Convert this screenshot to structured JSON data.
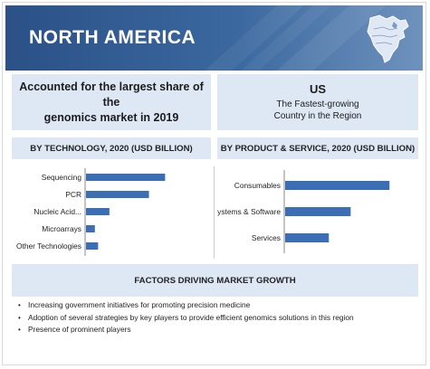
{
  "header": {
    "title": "NORTH AMERICA",
    "map_icon": "north-america-map-icon"
  },
  "callouts": {
    "left": {
      "line1": "Accounted for the largest share of the",
      "line2": "genomics market in 2019"
    },
    "right": {
      "region": "US",
      "line1": "The Fastest-growing",
      "line2": "Country in the Region"
    }
  },
  "colors": {
    "banner": "#2b5187",
    "bar": "#3b6eb4",
    "panel": "#dde8f4"
  },
  "chart_data": [
    {
      "type": "bar",
      "orientation": "horizontal",
      "title": "BY TECHNOLOGY, 2020 (USD BILLION)",
      "categories": [
        "Sequencing",
        "PCR",
        "Nucleic Acid...",
        "Microarrays",
        "Other Technologies"
      ],
      "values": [
        4.9,
        3.9,
        1.45,
        0.55,
        0.75
      ],
      "xlim": [
        0,
        6
      ]
    },
    {
      "type": "bar",
      "orientation": "horizontal",
      "title": "BY PRODUCT & SERVICE, 2020 (USD BILLION)",
      "categories": [
        "Consumables",
        "Systems & Software",
        "Services"
      ],
      "values": [
        8.6,
        5.4,
        3.6
      ],
      "xlim": [
        0,
        10
      ]
    }
  ],
  "factors": {
    "title": "FACTORS DRIVING MARKET GROWTH",
    "items": [
      "Increasing government initiatives for promoting precision medicine",
      "Adoption of several strategies by key players to provide efficient genomics solutions in this region",
      "Presence of prominent players"
    ],
    "bullet": "•"
  }
}
